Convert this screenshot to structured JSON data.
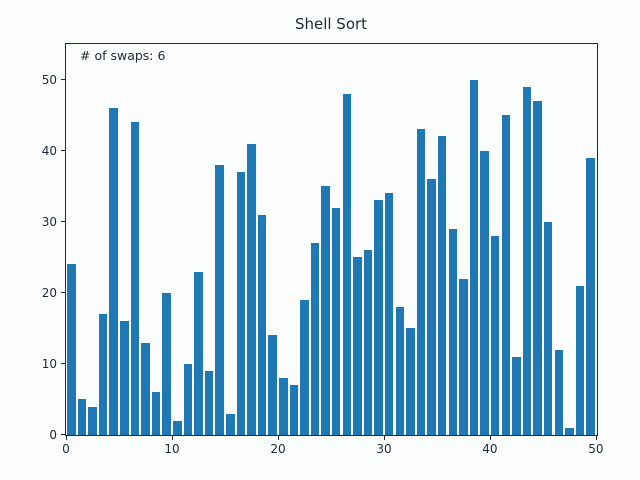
{
  "figure": {
    "title": "Shell Sort",
    "annotation": "# of swaps: 6"
  },
  "colors": {
    "bar": "#1f77b4",
    "background": "#fbfdfd",
    "text": "#1c2b38",
    "spine": "#1c2b38"
  },
  "chart_data": {
    "type": "bar",
    "title": "Shell Sort",
    "annotation": "# of swaps: 6",
    "categories": [
      0,
      1,
      2,
      3,
      4,
      5,
      6,
      7,
      8,
      9,
      10,
      11,
      12,
      13,
      14,
      15,
      16,
      17,
      18,
      19,
      20,
      21,
      22,
      23,
      24,
      25,
      26,
      27,
      28,
      29,
      30,
      31,
      32,
      33,
      34,
      35,
      36,
      37,
      38,
      39,
      40,
      41,
      42,
      43,
      44,
      45,
      46,
      47,
      48,
      49
    ],
    "values": [
      24,
      5,
      4,
      17,
      46,
      16,
      44,
      13,
      6,
      20,
      2,
      10,
      23,
      9,
      38,
      3,
      37,
      41,
      31,
      14,
      8,
      7,
      19,
      27,
      35,
      32,
      48,
      25,
      26,
      33,
      34,
      18,
      15,
      43,
      36,
      42,
      29,
      22,
      50,
      40,
      28,
      45,
      11,
      49,
      47,
      30,
      12,
      1,
      21,
      39
    ],
    "xlabel": "",
    "ylabel": "",
    "xticks": [
      0,
      10,
      20,
      30,
      40,
      50
    ],
    "yticks": [
      0,
      10,
      20,
      30,
      40,
      50
    ],
    "xlim": [
      0,
      50.1
    ],
    "ylim": [
      0,
      55
    ],
    "bar_width_fraction": 0.8,
    "grid": false,
    "legend": "none"
  }
}
